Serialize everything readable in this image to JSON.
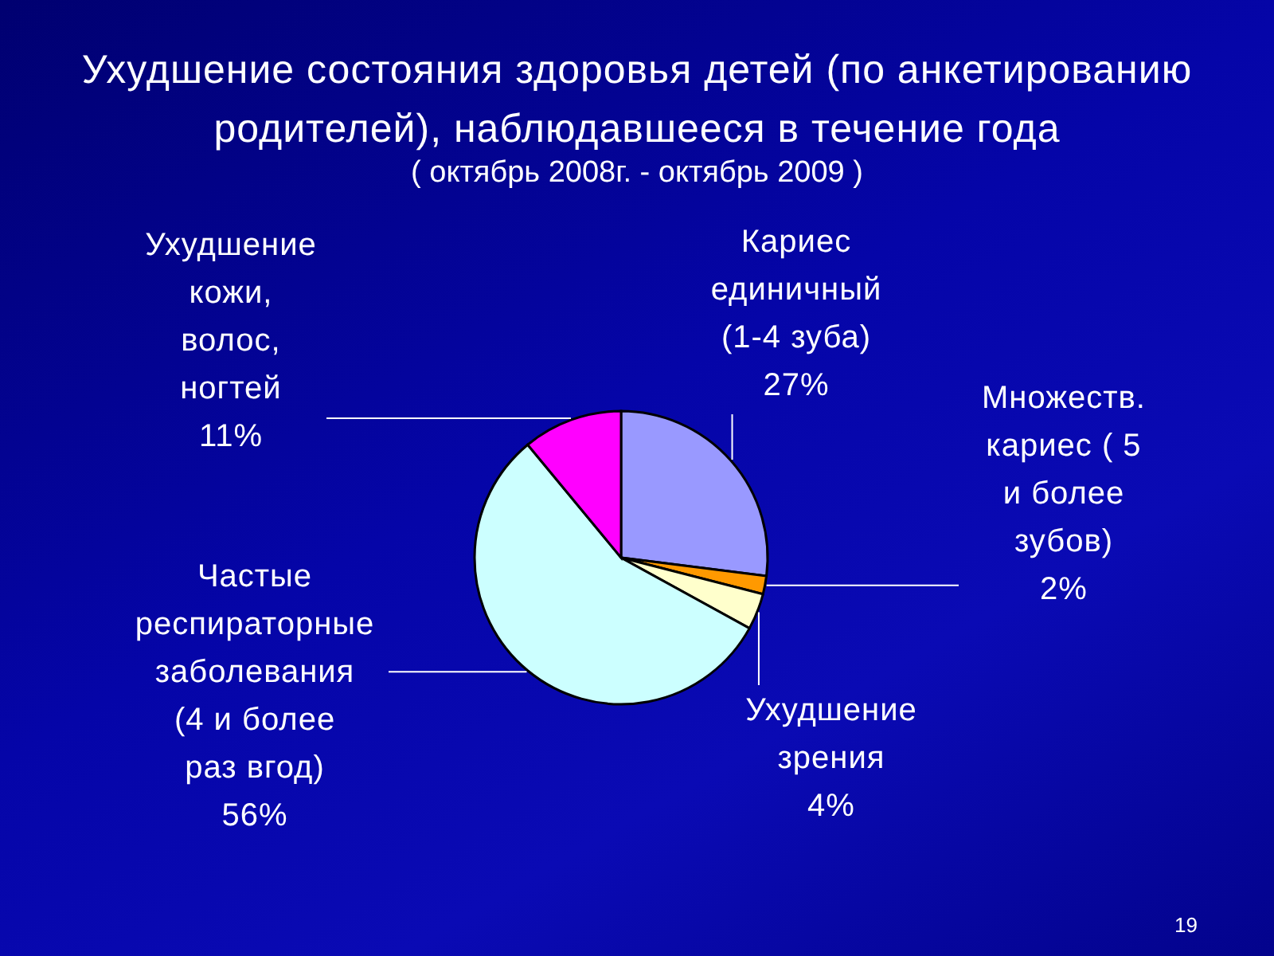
{
  "chart_data": {
    "type": "pie",
    "title": "Ухудшение состояния здоровья детей (по анкетированию родителей), наблюдавшееся в течение года",
    "subtitle": "( октябрь 2008г. - октябрь 2009 )",
    "categories": [
      "Кариес единичный (1-4 зуба)",
      "Множеств. кариес ( 5 и более зубов)",
      "Ухудшение зрения",
      "Частые респираторные заболевания (4 и более раз вгод)",
      "Ухудшение кожи, волос, ногтей"
    ],
    "values": [
      27,
      2,
      4,
      56,
      11
    ],
    "colors": [
      "#9999ff",
      "#ff9900",
      "#ffffcc",
      "#ccffff",
      "#ff00ff"
    ],
    "value_labels": [
      "27%",
      "2%",
      "4%",
      "56%",
      "11%"
    ],
    "annotations": [
      "19"
    ]
  }
}
